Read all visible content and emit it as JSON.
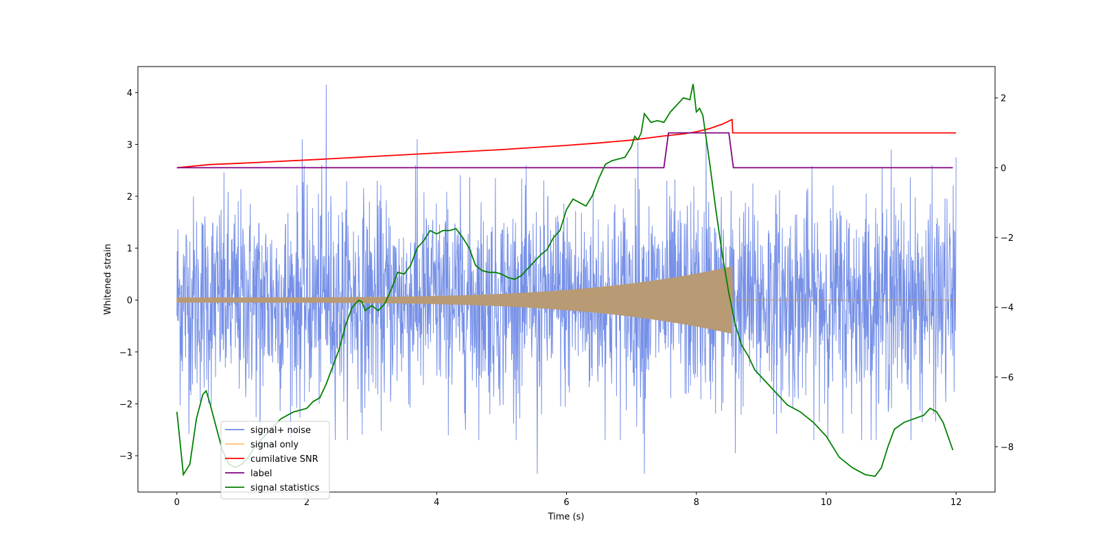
{
  "chart_data": {
    "type": "line",
    "title": "",
    "xlabel": "Time (s)",
    "ylabel": "Whitened strain",
    "y2label": "",
    "xlim": [
      -0.6,
      12.6
    ],
    "ylim": [
      -3.7,
      4.5
    ],
    "y2lim": [
      -9.3,
      2.9
    ],
    "x_ticks": [
      0,
      2,
      4,
      6,
      8,
      10,
      12
    ],
    "y_ticks": [
      -3,
      -2,
      -1,
      0,
      1,
      2,
      3,
      4
    ],
    "y2_ticks": [
      -8,
      -6,
      -4,
      -2,
      0,
      2
    ],
    "grid": false,
    "legend_position": "lower-left",
    "series": [
      {
        "name": "signal+ noise",
        "color": "#6f8ae6",
        "axis": "left",
        "kind": "noise",
        "x_range": [
          0,
          12
        ],
        "typical_amplitude": 1.2,
        "peak_max": 4.15,
        "peak_min": -3.35,
        "peaks": [
          {
            "x": 2.3,
            "y": 4.15
          },
          {
            "x": 1.93,
            "y": 3.1
          },
          {
            "x": 3.7,
            "y": 3.1
          },
          {
            "x": 7.1,
            "y": 3.05
          },
          {
            "x": 8.15,
            "y": 3.1
          },
          {
            "x": 5.55,
            "y": -3.35
          },
          {
            "x": 7.2,
            "y": -3.35
          },
          {
            "x": 8.6,
            "y": -2.95
          },
          {
            "x": 12.0,
            "y": 2.75
          },
          {
            "x": 11.0,
            "y": 2.9
          },
          {
            "x": 1.28,
            "y": -3.3
          }
        ]
      },
      {
        "name": "signal only",
        "color": "#ffbf70",
        "axis": "left",
        "kind": "chirp",
        "x_range": [
          0,
          8.55
        ],
        "amplitude_start": 0.05,
        "amplitude_end": 0.65,
        "after_merger_value": 0.0,
        "visible_x_end": 12
      },
      {
        "name": "cumilative SNR",
        "color": "#ff0000",
        "axis": "right",
        "x": [
          0,
          0.5,
          1,
          2,
          3,
          4,
          5,
          6,
          6.5,
          7,
          7.5,
          7.8,
          8.0,
          8.2,
          8.4,
          8.55,
          8.56,
          12
        ],
        "values": [
          0.0,
          0.09,
          0.13,
          0.22,
          0.32,
          0.42,
          0.52,
          0.64,
          0.71,
          0.79,
          0.91,
          0.97,
          1.03,
          1.12,
          1.25,
          1.38,
          1.0,
          1.0
        ]
      },
      {
        "name": "label",
        "color": "#800080",
        "axis": "right",
        "x": [
          0,
          7.5,
          7.57,
          8.5,
          8.57,
          11.95
        ],
        "values": [
          0,
          0,
          1,
          1,
          0,
          0
        ]
      },
      {
        "name": "signal statistics",
        "color": "#008000",
        "axis": "right",
        "x": [
          0,
          0.1,
          0.2,
          0.3,
          0.4,
          0.45,
          0.5,
          0.6,
          0.7,
          0.8,
          0.9,
          1.0,
          1.1,
          1.2,
          1.3,
          1.4,
          1.5,
          1.6,
          1.7,
          1.8,
          1.9,
          2.0,
          2.1,
          2.2,
          2.3,
          2.4,
          2.5,
          2.6,
          2.7,
          2.8,
          2.85,
          2.9,
          3.0,
          3.1,
          3.2,
          3.3,
          3.4,
          3.5,
          3.6,
          3.7,
          3.8,
          3.9,
          4.0,
          4.1,
          4.2,
          4.3,
          4.4,
          4.5,
          4.6,
          4.7,
          4.8,
          4.9,
          5.0,
          5.1,
          5.2,
          5.3,
          5.4,
          5.5,
          5.6,
          5.7,
          5.8,
          5.9,
          6.0,
          6.1,
          6.2,
          6.3,
          6.4,
          6.5,
          6.6,
          6.7,
          6.8,
          6.9,
          7.0,
          7.05,
          7.1,
          7.15,
          7.2,
          7.3,
          7.4,
          7.5,
          7.6,
          7.7,
          7.8,
          7.9,
          7.95,
          8.0,
          8.05,
          8.1,
          8.2,
          8.3,
          8.4,
          8.5,
          8.6,
          8.7,
          8.8,
          8.9,
          9.0,
          9.2,
          9.4,
          9.6,
          9.8,
          10.0,
          10.2,
          10.4,
          10.6,
          10.75,
          10.85,
          10.95,
          11.05,
          11.2,
          11.35,
          11.5,
          11.6,
          11.7,
          11.8,
          11.95
        ],
        "values": [
          -7.0,
          -8.8,
          -8.5,
          -7.2,
          -6.5,
          -6.4,
          -6.7,
          -7.4,
          -8.1,
          -8.5,
          -8.6,
          -8.5,
          -8.3,
          -8.0,
          -7.8,
          -7.6,
          -7.4,
          -7.2,
          -7.1,
          -7.0,
          -6.95,
          -6.9,
          -6.7,
          -6.6,
          -6.2,
          -5.7,
          -5.2,
          -4.5,
          -4.0,
          -3.8,
          -3.85,
          -4.1,
          -3.95,
          -4.1,
          -3.9,
          -3.5,
          -3.0,
          -3.05,
          -2.8,
          -2.3,
          -2.1,
          -1.8,
          -1.9,
          -1.8,
          -1.8,
          -1.75,
          -2.0,
          -2.3,
          -2.8,
          -2.95,
          -3.0,
          -3.0,
          -3.05,
          -3.15,
          -3.2,
          -3.1,
          -2.9,
          -2.7,
          -2.5,
          -2.35,
          -2.0,
          -1.8,
          -1.2,
          -0.9,
          -1.0,
          -1.1,
          -0.8,
          -0.3,
          0.1,
          0.2,
          0.25,
          0.3,
          0.6,
          0.9,
          0.8,
          1.0,
          1.55,
          1.3,
          1.35,
          1.3,
          1.6,
          1.8,
          2.0,
          1.95,
          2.4,
          1.6,
          1.7,
          1.5,
          0.2,
          -1.2,
          -2.5,
          -3.6,
          -4.5,
          -5.1,
          -5.4,
          -5.8,
          -6.0,
          -6.4,
          -6.8,
          -7.0,
          -7.3,
          -7.7,
          -8.3,
          -8.6,
          -8.8,
          -8.85,
          -8.6,
          -8.0,
          -7.5,
          -7.3,
          -7.2,
          -7.1,
          -6.9,
          -7.0,
          -7.3,
          -8.1
        ]
      }
    ]
  }
}
